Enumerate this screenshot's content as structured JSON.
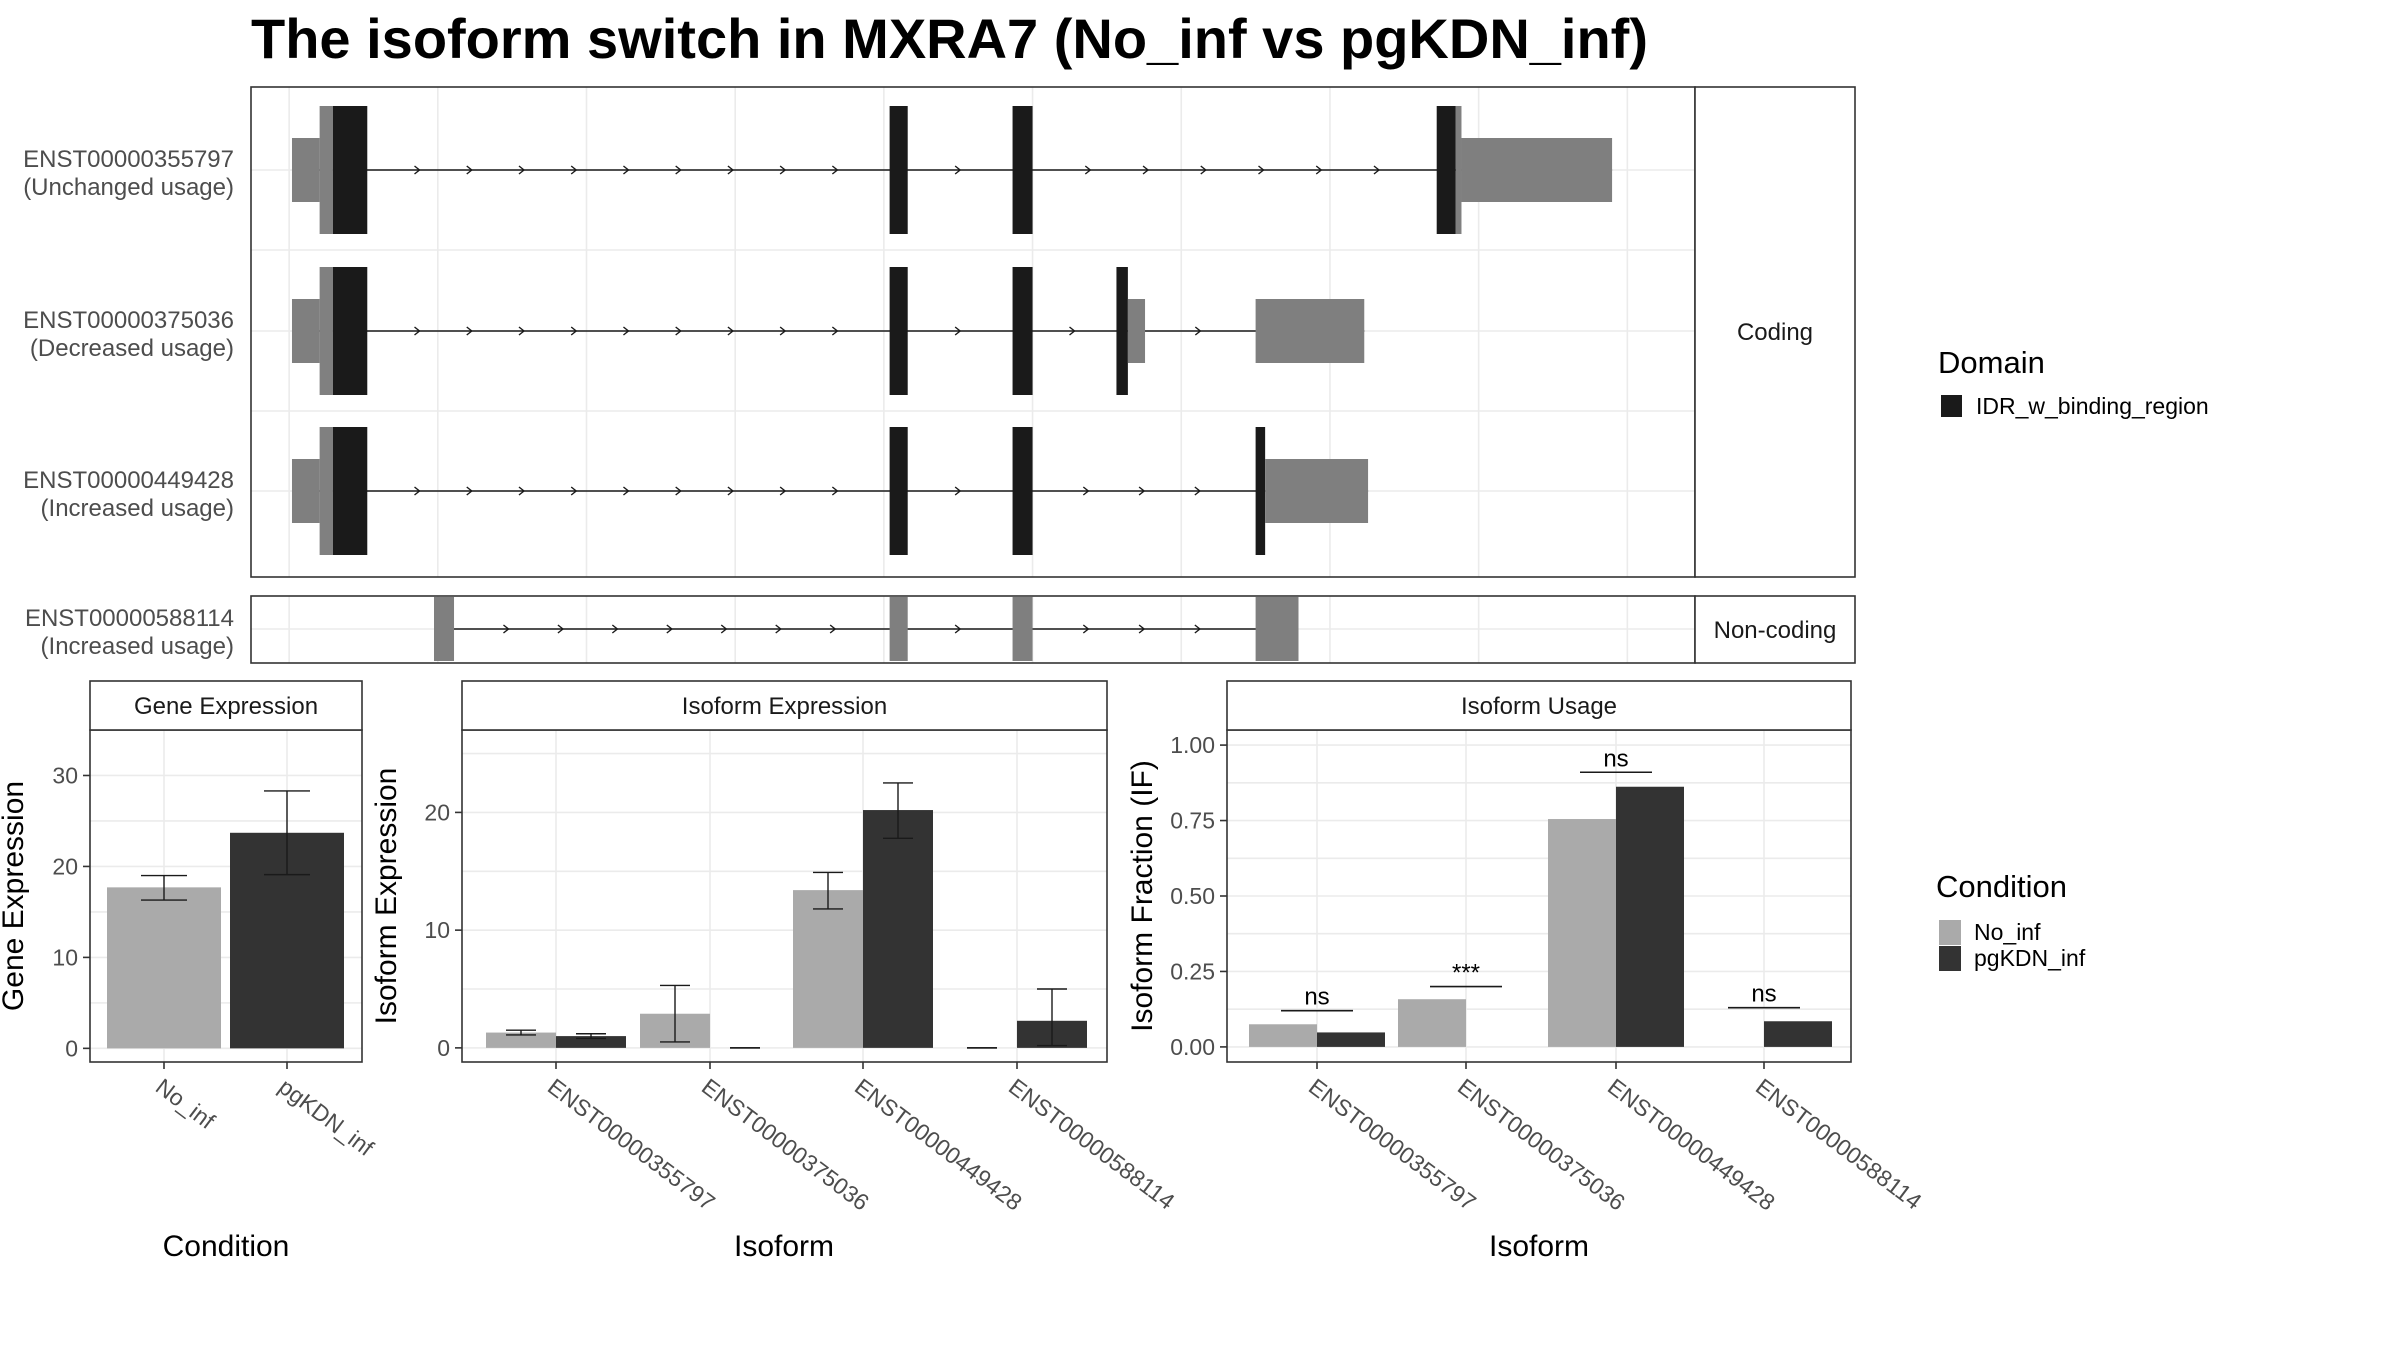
{
  "title": "The isoform switch in MXRA7 (No_inf vs pgKDN_inf)",
  "colors": {
    "utr": "#7f7f7f",
    "cds": "#808080",
    "domain": "#1a1a1a",
    "No_inf": "#aaaaaa",
    "pgKDN_inf": "#333333"
  },
  "chart_data": [
    {
      "type": "gene-structure",
      "panels": [
        {
          "label": "Coding",
          "transcripts": [
            {
              "id": "ENST00000355797",
              "usage": "(Unchanged usage)",
              "exons": [
                [
                  0.3,
                  3.2,
                  "utr"
                ],
                [
                  3.2,
                  4.6,
                  "cds"
                ],
                [
                  4.6,
                  8.2,
                  "domain"
                ],
                [
                  63.0,
                  64.9,
                  "domain"
                ],
                [
                  75.9,
                  78.0,
                  "domain"
                ],
                [
                  120.4,
                  122.4,
                  "domain"
                ],
                [
                  122.4,
                  123.0,
                  "cds"
                ],
                [
                  123.0,
                  138.8,
                  "utr"
                ]
              ]
            },
            {
              "id": "ENST00000375036",
              "usage": "(Decreased usage)",
              "exons": [
                [
                  0.3,
                  3.2,
                  "utr"
                ],
                [
                  3.2,
                  4.6,
                  "cds"
                ],
                [
                  4.6,
                  8.2,
                  "domain"
                ],
                [
                  63.0,
                  64.9,
                  "domain"
                ],
                [
                  75.9,
                  78.0,
                  "domain"
                ],
                [
                  86.8,
                  88.0,
                  "domain"
                ],
                [
                  88.0,
                  89.8,
                  "utr"
                ],
                [
                  101.4,
                  112.8,
                  "utr"
                ]
              ]
            },
            {
              "id": "ENST00000449428",
              "usage": "(Increased usage)",
              "exons": [
                [
                  0.3,
                  3.2,
                  "utr"
                ],
                [
                  3.2,
                  4.6,
                  "cds"
                ],
                [
                  4.6,
                  8.2,
                  "domain"
                ],
                [
                  63.0,
                  64.9,
                  "domain"
                ],
                [
                  75.9,
                  78.0,
                  "domain"
                ],
                [
                  101.4,
                  102.4,
                  "domain"
                ],
                [
                  102.4,
                  113.2,
                  "utr"
                ]
              ]
            }
          ]
        },
        {
          "label": "Non-coding",
          "transcripts": [
            {
              "id": "ENST00000588114",
              "usage": "(Increased usage)",
              "exons": [
                [
                  15.2,
                  17.3,
                  "utr"
                ],
                [
                  63.0,
                  64.9,
                  "utr"
                ],
                [
                  75.9,
                  78.0,
                  "utr"
                ],
                [
                  101.4,
                  105.9,
                  "utr"
                ]
              ]
            }
          ]
        }
      ],
      "legend": {
        "title": "Domain",
        "items": [
          {
            "label": "IDR_w_binding_region",
            "color": "#1a1a1a"
          }
        ]
      }
    },
    {
      "type": "bar",
      "strip": "Gene Expression",
      "xlabel": "Condition",
      "ylabel": "Gene Expression",
      "ylim": [
        -1.5,
        35
      ],
      "yticks": [
        0,
        10,
        20,
        30
      ],
      "categories": [
        "No_inf",
        "pgKDN_inf"
      ],
      "series": [
        {
          "name": "No_inf",
          "values": [
            17.7,
            null
          ],
          "err_low": [
            16.3,
            null
          ],
          "err_high": [
            19.0,
            null
          ]
        },
        {
          "name": "pgKDN_inf",
          "values": [
            null,
            23.7
          ],
          "err_low": [
            null,
            19.1
          ],
          "err_high": [
            null,
            28.3
          ]
        }
      ]
    },
    {
      "type": "bar",
      "strip": "Isoform Expression",
      "xlabel": "Isoform",
      "ylabel": "Isoform Expression",
      "ylim": [
        -1.2,
        27
      ],
      "yticks": [
        0,
        10,
        20
      ],
      "categories": [
        "ENST00000355797",
        "ENST00000375036",
        "ENST00000449428",
        "ENST00000588114"
      ],
      "series": [
        {
          "name": "No_inf",
          "values": [
            1.3,
            2.9,
            13.4,
            0.0
          ],
          "err_low": [
            1.1,
            0.5,
            11.8,
            0.0
          ],
          "err_high": [
            1.5,
            5.3,
            14.9,
            0.0
          ]
        },
        {
          "name": "pgKDN_inf",
          "values": [
            1.0,
            0.0,
            20.2,
            2.3
          ],
          "err_low": [
            0.8,
            0.0,
            17.8,
            0.2
          ],
          "err_high": [
            1.2,
            0.0,
            22.5,
            5.0
          ]
        }
      ]
    },
    {
      "type": "bar",
      "strip": "Isoform Usage",
      "xlabel": "Isoform",
      "ylabel": "Isoform Fraction (IF)",
      "ylim": [
        -0.05,
        1.05
      ],
      "yticks": [
        "0.00",
        "0.25",
        "0.50",
        "0.75",
        "1.00"
      ],
      "categories": [
        "ENST00000355797",
        "ENST00000375036",
        "ENST00000449428",
        "ENST00000588114"
      ],
      "series": [
        {
          "name": "No_inf",
          "values": [
            0.075,
            0.158,
            0.755,
            0.0
          ]
        },
        {
          "name": "pgKDN_inf",
          "values": [
            0.048,
            0.0,
            0.862,
            0.085
          ]
        }
      ],
      "significance": [
        {
          "category": "ENST00000355797",
          "label": "ns",
          "y": 0.12
        },
        {
          "category": "ENST00000375036",
          "label": "***",
          "y": 0.2
        },
        {
          "category": "ENST00000449428",
          "label": "ns",
          "y": 0.91
        },
        {
          "category": "ENST00000588114",
          "label": "ns",
          "y": 0.13
        }
      ],
      "legend": {
        "title": "Condition",
        "items": [
          {
            "label": "No_inf",
            "color": "#aaaaaa"
          },
          {
            "label": "pgKDN_inf",
            "color": "#333333"
          }
        ]
      }
    }
  ]
}
